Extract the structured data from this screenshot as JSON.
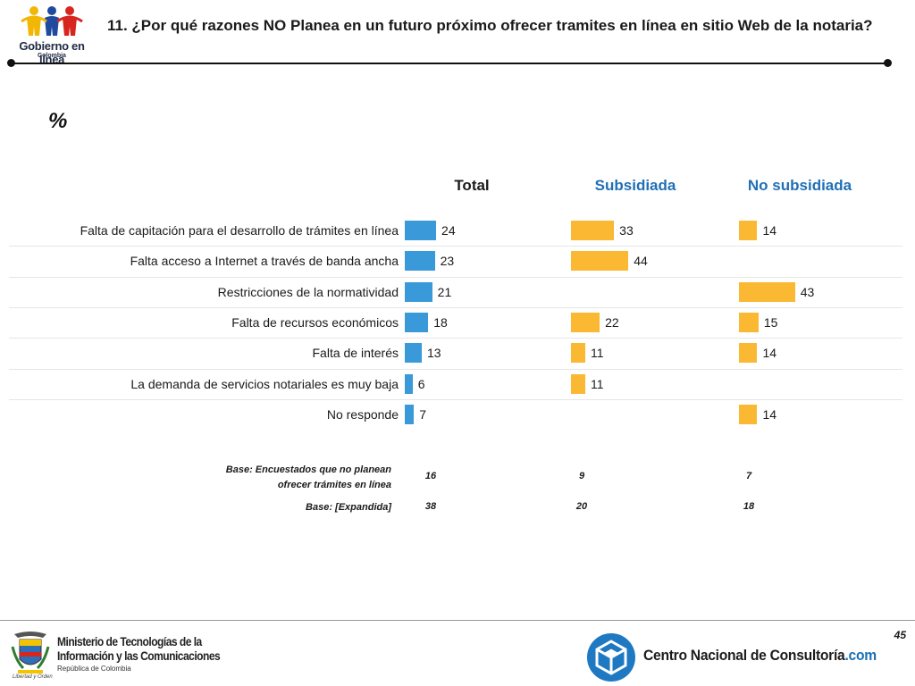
{
  "header": {
    "title": "11. ¿Por qué razones NO Planea en un futuro próximo ofrecer tramites en línea en sitio Web de la notaria?",
    "logo_text": "Gobierno en línea",
    "logo_subtext": "Colombia"
  },
  "unit_label": "%",
  "chart_data": {
    "type": "bar",
    "orientation": "horizontal",
    "categories": [
      "Falta de capitación para el desarrollo de trámites en línea",
      "Falta acceso a Internet a través de banda ancha",
      "Restricciones de la normatividad",
      "Falta de recursos económicos",
      "Falta de interés",
      "La demanda de servicios notariales es muy baja",
      "No responde"
    ],
    "series": [
      {
        "name": "Total",
        "color": "#3a9ad9",
        "header_color": "#1a1a1a",
        "values": [
          24,
          23,
          21,
          18,
          13,
          6,
          7
        ]
      },
      {
        "name": "Subsidiada",
        "color": "#fbb832",
        "header_color": "#1f6fb5",
        "values": [
          33,
          44,
          null,
          22,
          11,
          11,
          null
        ]
      },
      {
        "name": "No subsidiada",
        "color": "#fbb832",
        "header_color": "#1f6fb5",
        "values": [
          14,
          null,
          43,
          15,
          14,
          null,
          14
        ]
      }
    ],
    "xlim": [
      0,
      100
    ],
    "grid": false,
    "legend": "none"
  },
  "bases": [
    {
      "label": "Base: Encuestados que no planean ofrecer trámites en línea",
      "values": [
        "16",
        "9",
        "7"
      ]
    },
    {
      "label": "Base: [Expandida]",
      "values": [
        "38",
        "20",
        "18"
      ]
    }
  ],
  "footer": {
    "page_number": "45",
    "ministry_line1": "Ministerio de Tecnologías de la",
    "ministry_line2": "Información y las Comunicaciones",
    "ministry_sub": "República de Colombia",
    "ministry_motto": "Libertad y Orden",
    "cnc_name": "Centro Nacional de Consultoría",
    "cnc_suffix": ".com"
  }
}
